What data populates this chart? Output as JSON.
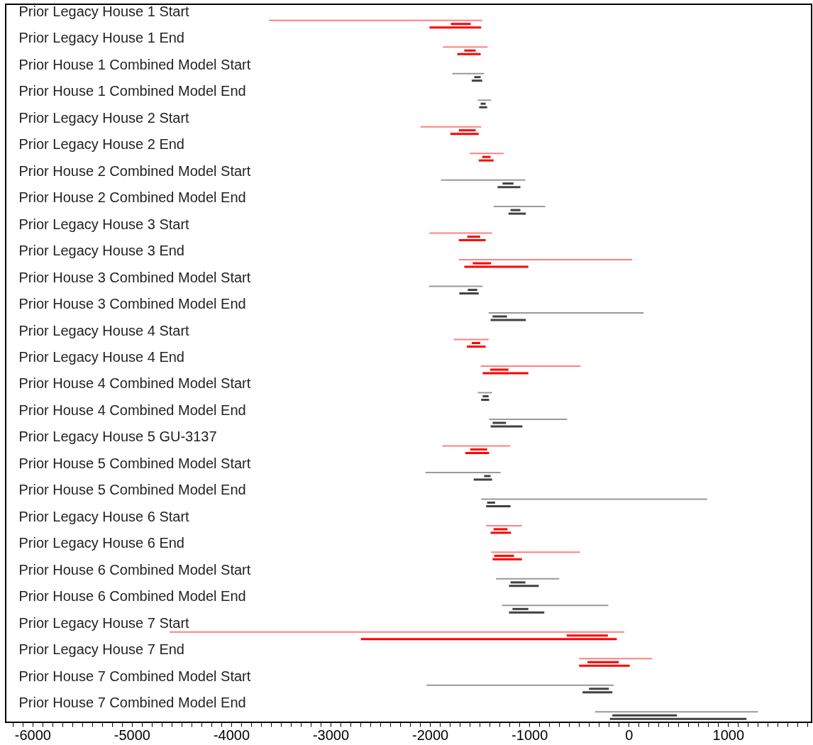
{
  "chart_data": {
    "type": "bar",
    "orientation": "horizontal",
    "categories": [
      "Prior Legacy House 1 Start",
      "Prior Legacy House 1 End",
      "Prior House 1 Combined Model Start",
      "Prior House 1 Combined Model End",
      "Prior Legacy House 2 Start",
      "Prior Legacy House 2 End",
      "Prior House 2 Combined Model Start",
      "Prior House 2 Combined Model End",
      "Prior Legacy House 3 Start",
      "Prior Legacy House 3 End",
      "Prior House 3 Combined Model Start",
      "Prior House 3 Combined Model End",
      "Prior Legacy House 4 Start",
      "Prior Legacy House 4 End",
      "Prior House 4 Combined Model Start",
      "Prior House 4 Combined Model End",
      "Prior Legacy House 5 GU-3137",
      "Prior House 5 Combined Model Start",
      "Prior House 5 Combined Model End",
      "Prior Legacy House 6 Start",
      "Prior Legacy House 6 End",
      "Prior House 6 Combined Model Start",
      "Prior House 6 Combined Model End",
      "Prior Legacy House 7 Start",
      "Prior Legacy House 7 End",
      "Prior House 7 Combined Model Start",
      "Prior House 7 Combined Model End"
    ],
    "series": [
      {
        "base": [
          -3620,
          -1870,
          -1775,
          -1520,
          -2095,
          -1600,
          -1890,
          -1360,
          -2005,
          -1710,
          -2010,
          -1410,
          -1760,
          -1490,
          -1520,
          -1405,
          -1875,
          -2045,
          -1485,
          -1435,
          -1385,
          -1335,
          -1275,
          -4620,
          -500,
          -2035,
          -340
        ],
        "values": [
          2145,
          450,
          320,
          135,
          610,
          340,
          850,
          520,
          630,
          1745,
          540,
          1560,
          350,
          1005,
          145,
          785,
          685,
          755,
          2275,
          360,
          895,
          635,
          1070,
          4575,
          735,
          1885,
          1640
        ],
        "colors": [
          "#ff8080",
          "#ff8080",
          "#999999",
          "#999999",
          "#ff8080",
          "#ff8080",
          "#999999",
          "#999999",
          "#ff8080",
          "#ff8080",
          "#999999",
          "#999999",
          "#ff8080",
          "#ff8080",
          "#999999",
          "#999999",
          "#ff8080",
          "#999999",
          "#999999",
          "#ff8080",
          "#ff8080",
          "#999999",
          "#999999",
          "#ff8080",
          "#ff8080",
          "#999999",
          "#999999"
        ]
      },
      {
        "base": [
          -1790,
          -1655,
          -1555,
          -1490,
          -1710,
          -1475,
          -1270,
          -1190,
          -1625,
          -1570,
          -1620,
          -1370,
          -1580,
          -1395,
          -1470,
          -1370,
          -1595,
          -1455,
          -1425,
          -1360,
          -1355,
          -1190,
          -1170,
          -625,
          -415,
          -400,
          -165
        ],
        "values": [
          200,
          115,
          65,
          50,
          170,
          85,
          110,
          100,
          130,
          185,
          95,
          145,
          85,
          185,
          60,
          135,
          170,
          65,
          80,
          140,
          200,
          150,
          160,
          415,
          315,
          200,
          650
        ],
        "colors": [
          "#ff0000",
          "#ff0000",
          "#404040",
          "#404040",
          "#ff0000",
          "#ff0000",
          "#404040",
          "#404040",
          "#ff0000",
          "#ff0000",
          "#404040",
          "#404040",
          "#ff0000",
          "#ff0000",
          "#404040",
          "#404040",
          "#ff0000",
          "#404040",
          "#404040",
          "#ff0000",
          "#ff0000",
          "#404040",
          "#404040",
          "#ff0000",
          "#ff0000",
          "#404040",
          "#404040"
        ]
      },
      {
        "base": [
          -2005,
          -1725,
          -1580,
          -1505,
          -1795,
          -1510,
          -1320,
          -1210,
          -1710,
          -1655,
          -1705,
          -1390,
          -1630,
          -1470,
          -1485,
          -1390,
          -1645,
          -1560,
          -1435,
          -1390,
          -1370,
          -1205,
          -1205,
          -2695,
          -500,
          -465,
          -190
        ],
        "values": [
          520,
          235,
          105,
          80,
          285,
          150,
          230,
          175,
          270,
          645,
          195,
          355,
          190,
          460,
          80,
          320,
          240,
          185,
          245,
          205,
          295,
          300,
          355,
          2575,
          510,
          300,
          1375
        ],
        "colors": [
          "#ff0000",
          "#ff0000",
          "#404040",
          "#404040",
          "#ff0000",
          "#ff0000",
          "#404040",
          "#404040",
          "#ff0000",
          "#ff0000",
          "#404040",
          "#404040",
          "#ff0000",
          "#ff0000",
          "#404040",
          "#404040",
          "#ff0000",
          "#404040",
          "#404040",
          "#ff0000",
          "#ff0000",
          "#404040",
          "#404040",
          "#ff0000",
          "#ff0000",
          "#404040",
          "#404040"
        ]
      }
    ],
    "xlim": [
      -6270,
      1840
    ],
    "xticks": [
      {
        "value": -6200,
        "label": null
      },
      {
        "value": -6100,
        "label": null
      },
      -6000,
      {
        "value": -5900,
        "label": null
      },
      {
        "value": -5800,
        "label": null
      },
      {
        "value": -5700,
        "label": null
      },
      {
        "value": -5600,
        "label": null
      },
      {
        "value": -5500,
        "label": null
      },
      {
        "value": -5400,
        "label": null
      },
      {
        "value": -5300,
        "label": null
      },
      {
        "value": -5200,
        "label": null
      },
      {
        "value": -5100,
        "label": null
      },
      -5000,
      {
        "value": -4900,
        "label": null
      },
      {
        "value": -4800,
        "label": null
      },
      {
        "value": -4700,
        "label": null
      },
      {
        "value": -4600,
        "label": null
      },
      {
        "value": -4500,
        "label": null
      },
      {
        "value": -4400,
        "label": null
      },
      {
        "value": -4300,
        "label": null
      },
      {
        "value": -4200,
        "label": null
      },
      {
        "value": -4100,
        "label": null
      },
      -4000,
      {
        "value": -3900,
        "label": null
      },
      {
        "value": -3800,
        "label": null
      },
      {
        "value": -3700,
        "label": null
      },
      {
        "value": -3600,
        "label": null
      },
      {
        "value": -3500,
        "label": null
      },
      {
        "value": -3400,
        "label": null
      },
      {
        "value": -3300,
        "label": null
      },
      {
        "value": -3200,
        "label": null
      },
      {
        "value": -3100,
        "label": null
      },
      -3000,
      {
        "value": -2900,
        "label": null
      },
      {
        "value": -2800,
        "label": null
      },
      {
        "value": -2700,
        "label": null
      },
      {
        "value": -2600,
        "label": null
      },
      {
        "value": -2500,
        "label": null
      },
      {
        "value": -2400,
        "label": null
      },
      {
        "value": -2300,
        "label": null
      },
      {
        "value": -2200,
        "label": null
      },
      {
        "value": -2100,
        "label": null
      },
      -2000,
      {
        "value": -1900,
        "label": null
      },
      {
        "value": -1800,
        "label": null
      },
      {
        "value": -1700,
        "label": null
      },
      {
        "value": -1600,
        "label": null
      },
      {
        "value": -1500,
        "label": null
      },
      {
        "value": -1400,
        "label": null
      },
      {
        "value": -1300,
        "label": null
      },
      {
        "value": -1200,
        "label": null
      },
      {
        "value": -1100,
        "label": null
      },
      -1000,
      {
        "value": -900,
        "label": null
      },
      {
        "value": -800,
        "label": null
      },
      {
        "value": -700,
        "label": null
      },
      {
        "value": -600,
        "label": null
      },
      {
        "value": -500,
        "label": null
      },
      {
        "value": -400,
        "label": null
      },
      {
        "value": -300,
        "label": null
      },
      {
        "value": -200,
        "label": null
      },
      {
        "value": -100,
        "label": null
      },
      0,
      {
        "value": 100,
        "label": null
      },
      {
        "value": 200,
        "label": null
      },
      {
        "value": 300,
        "label": null
      },
      {
        "value": 400,
        "label": null
      },
      {
        "value": 500,
        "label": null
      },
      {
        "value": 600,
        "label": null
      },
      {
        "value": 700,
        "label": null
      },
      {
        "value": 800,
        "label": null
      },
      {
        "value": 900,
        "label": null
      },
      1000,
      {
        "value": 1100,
        "label": null
      },
      {
        "value": 1200,
        "label": null
      },
      {
        "value": 1300,
        "label": null
      },
      {
        "value": 1400,
        "label": null
      },
      {
        "value": 1500,
        "label": null
      },
      {
        "value": 1600,
        "label": null
      },
      {
        "value": 1700,
        "label": null
      },
      {
        "value": 1800,
        "label": null
      }
    ]
  }
}
